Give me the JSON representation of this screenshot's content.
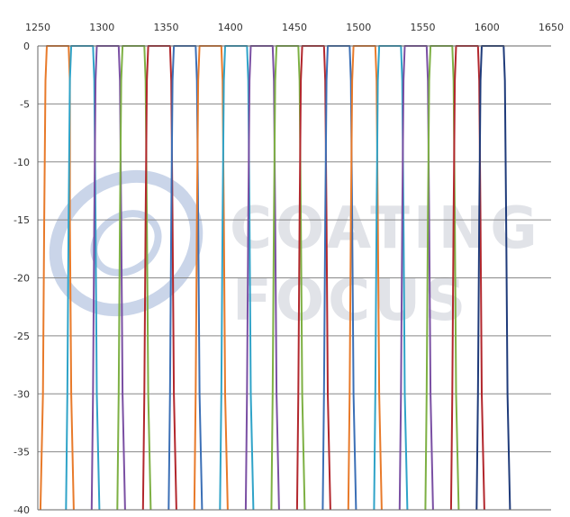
{
  "chart_data": {
    "type": "line",
    "xlim": [
      1250,
      1650
    ],
    "ylim": [
      -40,
      0
    ],
    "x_ticks": [
      "1250",
      "1300",
      "1350",
      "1400",
      "1450",
      "1500",
      "1550",
      "1600",
      "1650"
    ],
    "y_ticks": [
      "0",
      "-5",
      "-10",
      "-15",
      "-20",
      "-25",
      "-30",
      "-35",
      "-40"
    ],
    "x_axis_position": "top",
    "grid": {
      "horizontal": true,
      "vertical": false
    },
    "legend": "none",
    "series": [
      {
        "color": "#E87A2A",
        "points": [
          [
            1252,
            -40
          ],
          [
            1254,
            -30
          ],
          [
            1255,
            -15
          ],
          [
            1256,
            -3
          ],
          [
            1257,
            0
          ],
          [
            1274,
            0
          ],
          [
            1275,
            -3
          ],
          [
            1275,
            -15
          ],
          [
            1276,
            -30
          ],
          [
            1278,
            -40
          ]
        ]
      },
      {
        "color": "#2FA3C8",
        "points": [
          [
            1272,
            -40
          ],
          [
            1273,
            -30
          ],
          [
            1274,
            -15
          ],
          [
            1275,
            -3
          ],
          [
            1276,
            0
          ],
          [
            1293,
            0
          ],
          [
            1294,
            -3
          ],
          [
            1295,
            -15
          ],
          [
            1296,
            -30
          ],
          [
            1298,
            -40
          ]
        ]
      },
      {
        "color": "#7A4FA3",
        "points": [
          [
            1292,
            -40
          ],
          [
            1293,
            -30
          ],
          [
            1294,
            -15
          ],
          [
            1295,
            -3
          ],
          [
            1296,
            0
          ],
          [
            1313,
            0
          ],
          [
            1314,
            -3
          ],
          [
            1315,
            -15
          ],
          [
            1316,
            -30
          ],
          [
            1318,
            -40
          ]
        ]
      },
      {
        "color": "#7DB043",
        "points": [
          [
            1312,
            -40
          ],
          [
            1313,
            -30
          ],
          [
            1314,
            -15
          ],
          [
            1315,
            -3
          ],
          [
            1316,
            0
          ],
          [
            1333,
            0
          ],
          [
            1334,
            -3
          ],
          [
            1335,
            -15
          ],
          [
            1336,
            -30
          ],
          [
            1338,
            -40
          ]
        ]
      },
      {
        "color": "#B2272D",
        "points": [
          [
            1332,
            -40
          ],
          [
            1333,
            -30
          ],
          [
            1334,
            -15
          ],
          [
            1335,
            -3
          ],
          [
            1336,
            0
          ],
          [
            1353,
            0
          ],
          [
            1354,
            -3
          ],
          [
            1355,
            -15
          ],
          [
            1356,
            -30
          ],
          [
            1358,
            -40
          ]
        ]
      },
      {
        "color": "#3B6FB6",
        "points": [
          [
            1352,
            -40
          ],
          [
            1353,
            -30
          ],
          [
            1354,
            -15
          ],
          [
            1355,
            -3
          ],
          [
            1356,
            0
          ],
          [
            1373,
            0
          ],
          [
            1374,
            -3
          ],
          [
            1375,
            -15
          ],
          [
            1376,
            -30
          ],
          [
            1378,
            -40
          ]
        ]
      },
      {
        "color": "#E87A2A",
        "points": [
          [
            1372,
            -40
          ],
          [
            1373,
            -30
          ],
          [
            1374,
            -15
          ],
          [
            1375,
            -3
          ],
          [
            1376,
            0
          ],
          [
            1393,
            0
          ],
          [
            1394,
            -3
          ],
          [
            1395,
            -15
          ],
          [
            1396,
            -30
          ],
          [
            1398,
            -40
          ]
        ]
      },
      {
        "color": "#2FA3C8",
        "points": [
          [
            1392,
            -40
          ],
          [
            1393,
            -30
          ],
          [
            1394,
            -15
          ],
          [
            1395,
            -3
          ],
          [
            1396,
            0
          ],
          [
            1413,
            0
          ],
          [
            1414,
            -3
          ],
          [
            1415,
            -15
          ],
          [
            1416,
            -30
          ],
          [
            1418,
            -40
          ]
        ]
      },
      {
        "color": "#7A4FA3",
        "points": [
          [
            1412,
            -40
          ],
          [
            1413,
            -30
          ],
          [
            1414,
            -15
          ],
          [
            1415,
            -3
          ],
          [
            1416,
            0
          ],
          [
            1433,
            0
          ],
          [
            1434,
            -3
          ],
          [
            1435,
            -15
          ],
          [
            1436,
            -30
          ],
          [
            1438,
            -40
          ]
        ]
      },
      {
        "color": "#7DB043",
        "points": [
          [
            1432,
            -40
          ],
          [
            1433,
            -30
          ],
          [
            1434,
            -15
          ],
          [
            1435,
            -3
          ],
          [
            1436,
            0
          ],
          [
            1453,
            0
          ],
          [
            1454,
            -3
          ],
          [
            1455,
            -15
          ],
          [
            1456,
            -30
          ],
          [
            1458,
            -40
          ]
        ]
      },
      {
        "color": "#B2272D",
        "points": [
          [
            1452,
            -40
          ],
          [
            1453,
            -30
          ],
          [
            1454,
            -15
          ],
          [
            1455,
            -3
          ],
          [
            1456,
            0
          ],
          [
            1473,
            0
          ],
          [
            1474,
            -3
          ],
          [
            1475,
            -15
          ],
          [
            1476,
            -30
          ],
          [
            1478,
            -40
          ]
        ]
      },
      {
        "color": "#3B6FB6",
        "points": [
          [
            1472,
            -40
          ],
          [
            1473,
            -30
          ],
          [
            1474,
            -15
          ],
          [
            1475,
            -3
          ],
          [
            1476,
            0
          ],
          [
            1493,
            0
          ],
          [
            1494,
            -3
          ],
          [
            1495,
            -15
          ],
          [
            1496,
            -30
          ],
          [
            1498,
            -40
          ]
        ]
      },
      {
        "color": "#E87A2A",
        "points": [
          [
            1492,
            -40
          ],
          [
            1493,
            -30
          ],
          [
            1494,
            -15
          ],
          [
            1495,
            -3
          ],
          [
            1496,
            0
          ],
          [
            1513,
            0
          ],
          [
            1514,
            -3
          ],
          [
            1515,
            -15
          ],
          [
            1516,
            -30
          ],
          [
            1518,
            -40
          ]
        ]
      },
      {
        "color": "#2FA3C8",
        "points": [
          [
            1512,
            -40
          ],
          [
            1513,
            -30
          ],
          [
            1514,
            -15
          ],
          [
            1515,
            -3
          ],
          [
            1516,
            0
          ],
          [
            1533,
            0
          ],
          [
            1534,
            -3
          ],
          [
            1535,
            -15
          ],
          [
            1536,
            -30
          ],
          [
            1538,
            -40
          ]
        ]
      },
      {
        "color": "#7A4FA3",
        "points": [
          [
            1532,
            -40
          ],
          [
            1533,
            -30
          ],
          [
            1534,
            -15
          ],
          [
            1535,
            -3
          ],
          [
            1536,
            0
          ],
          [
            1553,
            0
          ],
          [
            1554,
            -3
          ],
          [
            1555,
            -15
          ],
          [
            1556,
            -30
          ],
          [
            1558,
            -40
          ]
        ]
      },
      {
        "color": "#7DB043",
        "points": [
          [
            1552,
            -40
          ],
          [
            1553,
            -30
          ],
          [
            1554,
            -15
          ],
          [
            1555,
            -3
          ],
          [
            1556,
            0
          ],
          [
            1573,
            0
          ],
          [
            1574,
            -3
          ],
          [
            1575,
            -15
          ],
          [
            1576,
            -30
          ],
          [
            1578,
            -40
          ]
        ]
      },
      {
        "color": "#B2272D",
        "points": [
          [
            1572,
            -40
          ],
          [
            1573,
            -30
          ],
          [
            1574,
            -15
          ],
          [
            1575,
            -3
          ],
          [
            1576,
            0
          ],
          [
            1593,
            0
          ],
          [
            1594,
            -3
          ],
          [
            1595,
            -15
          ],
          [
            1596,
            -30
          ],
          [
            1598,
            -40
          ]
        ]
      },
      {
        "color": "#1F3B7A",
        "points": [
          [
            1592,
            -40
          ],
          [
            1593,
            -30
          ],
          [
            1594,
            -15
          ],
          [
            1595,
            -3
          ],
          [
            1596,
            0
          ],
          [
            1613,
            0
          ],
          [
            1614,
            -3
          ],
          [
            1615,
            -15
          ],
          [
            1616,
            -30
          ],
          [
            1618,
            -40
          ]
        ]
      }
    ]
  },
  "watermark": {
    "line1": "COATING",
    "line2": "FOCUS",
    "color": "#c9cdd6",
    "logo_color": "#9fb4d8"
  }
}
